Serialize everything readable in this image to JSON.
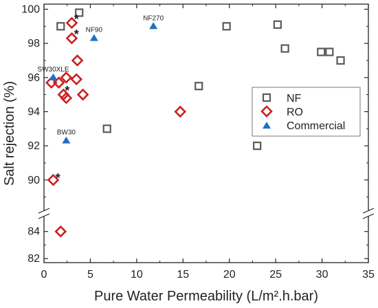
{
  "chart_data": {
    "type": "scatter",
    "xlabel": "Pure Water Permeability (L/m².h.bar)",
    "ylabel": "Salt rejection (%)",
    "xlim": [
      0,
      35
    ],
    "x_ticks": [
      0,
      5,
      10,
      15,
      20,
      25,
      30,
      35
    ],
    "y_upper_range": [
      88.5,
      100.3
    ],
    "y_upper_ticks": [
      90,
      92,
      94,
      96,
      98,
      100
    ],
    "y_lower_range": [
      81.7,
      85
    ],
    "y_lower_ticks": [
      82,
      84
    ],
    "axis_break": true,
    "legend_position": "right",
    "series": [
      {
        "name": "NF",
        "marker": "open-square",
        "color": "#5a5a5a",
        "points": [
          {
            "x": 1.8,
            "y": 99.0
          },
          {
            "x": 3.8,
            "y": 99.8
          },
          {
            "x": 6.8,
            "y": 93.0
          },
          {
            "x": 16.7,
            "y": 95.5
          },
          {
            "x": 19.7,
            "y": 99.0
          },
          {
            "x": 23.0,
            "y": 92.0
          },
          {
            "x": 25.2,
            "y": 99.1
          },
          {
            "x": 26.0,
            "y": 97.7
          },
          {
            "x": 29.9,
            "y": 97.5
          },
          {
            "x": 30.8,
            "y": 97.5
          },
          {
            "x": 32.0,
            "y": 97.0
          }
        ]
      },
      {
        "name": "RO",
        "marker": "open-diamond",
        "color": "#cc1f1f",
        "points": [
          {
            "x": 3.0,
            "y": 99.2
          },
          {
            "x": 3.0,
            "y": 98.3
          },
          {
            "x": 3.6,
            "y": 97.0
          },
          {
            "x": 2.4,
            "y": 96.0
          },
          {
            "x": 3.5,
            "y": 95.9
          },
          {
            "x": 0.8,
            "y": 95.7
          },
          {
            "x": 1.6,
            "y": 95.7
          },
          {
            "x": 2.1,
            "y": 95.0
          },
          {
            "x": 2.4,
            "y": 94.8
          },
          {
            "x": 4.2,
            "y": 95.0
          },
          {
            "x": 14.7,
            "y": 94.0
          },
          {
            "x": 1.0,
            "y": 90.0
          },
          {
            "x": 1.8,
            "y": 84.0
          }
        ]
      },
      {
        "name": "Commercial",
        "marker": "filled-triangle",
        "color": "#1f6fc8",
        "points": [
          {
            "x": 1.0,
            "y": 96.0,
            "label": "SW30XLE"
          },
          {
            "x": 2.4,
            "y": 92.3,
            "label": "BW30"
          },
          {
            "x": 5.4,
            "y": 98.3,
            "label": "NF90"
          },
          {
            "x": 11.8,
            "y": 99.0,
            "label": "NF270"
          }
        ]
      }
    ],
    "asterisks": [
      {
        "x": 3.5,
        "y": 99.5,
        "text": "*"
      },
      {
        "x": 3.5,
        "y": 98.6,
        "text": "*"
      },
      {
        "x": 2.5,
        "y": 95.3,
        "text": "*"
      },
      {
        "x": 1.5,
        "y": 90.2,
        "text": "*"
      }
    ]
  }
}
